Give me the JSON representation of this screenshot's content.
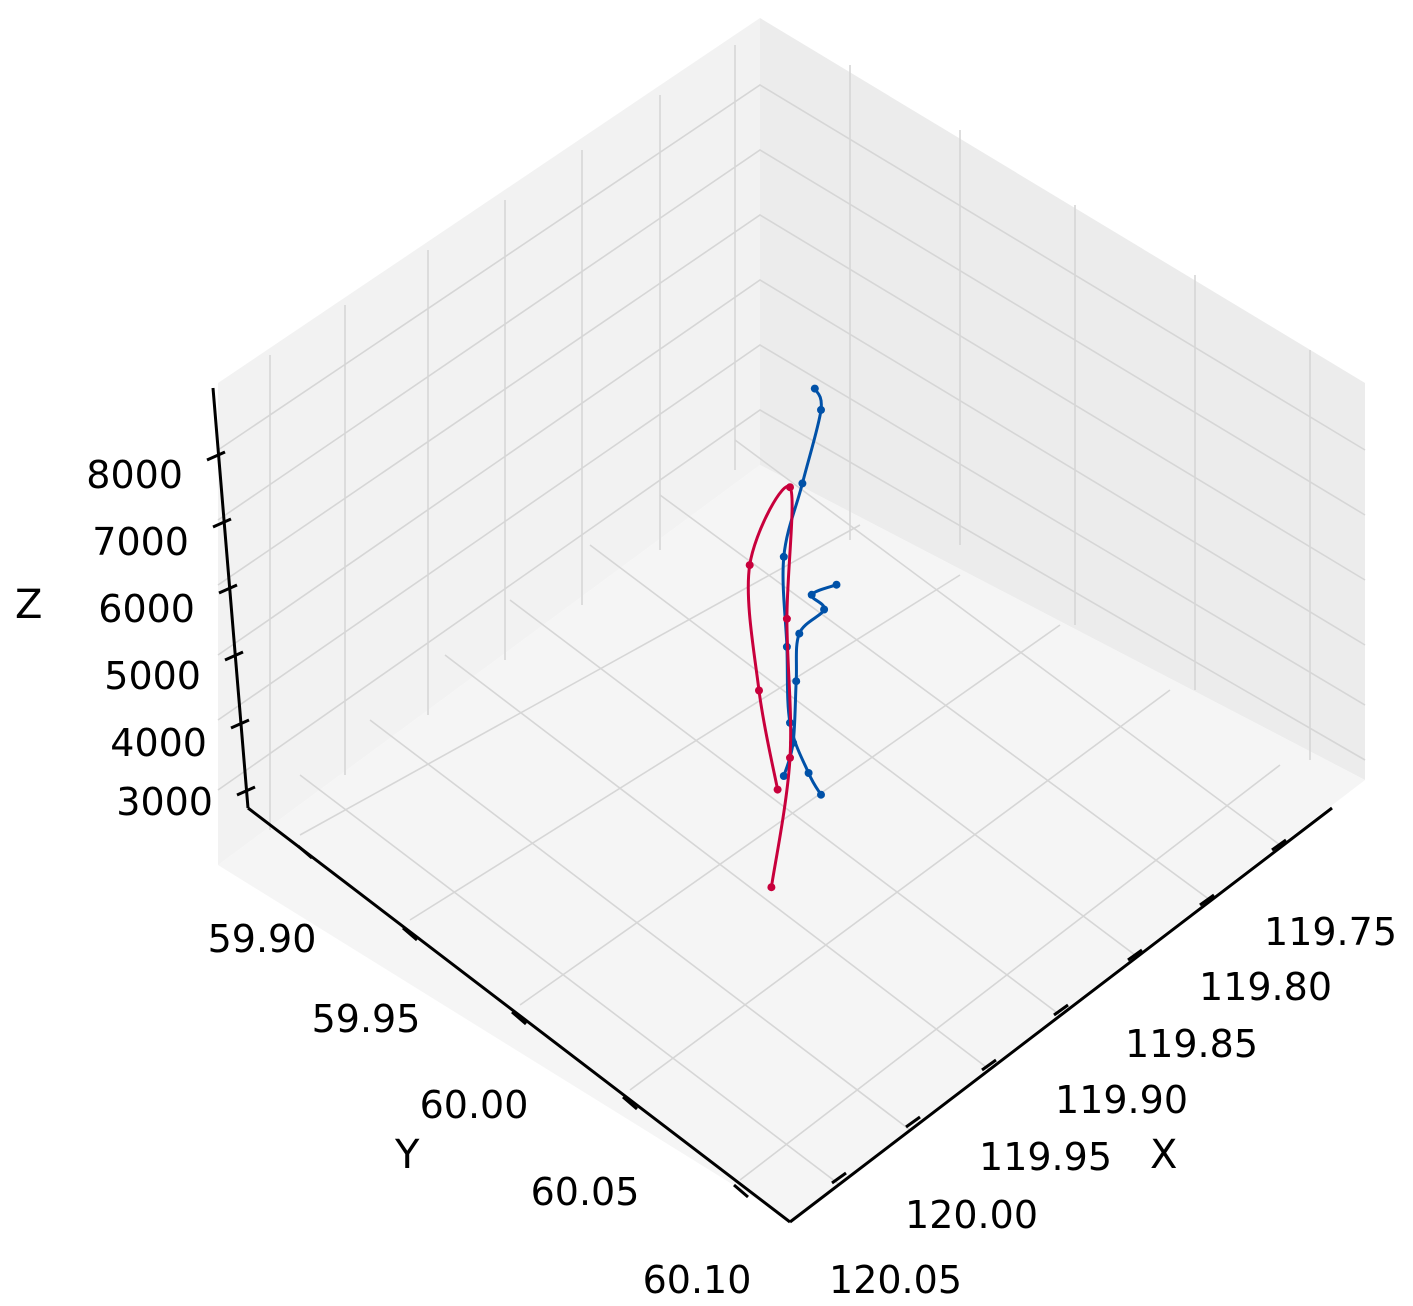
{
  "chart_data": {
    "type": "line",
    "projection": "3d",
    "title": "",
    "xlabel": "X",
    "ylabel": "Y",
    "zlabel": "Z",
    "x_ticks": [
      "119.75",
      "119.80",
      "119.85",
      "119.90",
      "119.95",
      "120.00",
      "120.05"
    ],
    "y_ticks": [
      "59.90",
      "59.95",
      "60.00",
      "60.05",
      "60.10"
    ],
    "z_ticks": [
      "3000",
      "4000",
      "5000",
      "6000",
      "7000",
      "8000"
    ],
    "xlim": [
      119.72,
      120.07
    ],
    "ylim": [
      59.87,
      60.12
    ],
    "zlim": [
      2800,
      8800
    ],
    "grid": true,
    "legend": "none",
    "series": [
      {
        "color": "#0051A8",
        "points": [
          {
            "x": 119.83,
            "y": 59.97,
            "z": 4300
          },
          {
            "x": 119.86,
            "y": 59.98,
            "z": 4900
          },
          {
            "x": 119.88,
            "y": 60.0,
            "z": 5500
          },
          {
            "x": 119.91,
            "y": 60.01,
            "z": 5900
          },
          {
            "x": 119.94,
            "y": 60.03,
            "z": 6200
          },
          {
            "x": 119.97,
            "y": 60.05,
            "z": 6300
          },
          {
            "x": 119.99,
            "y": 60.06,
            "z": 6400
          }
        ]
      },
      {
        "color": "#0051A8",
        "points": [
          {
            "x": 119.98,
            "y": 60.07,
            "z": 6200
          },
          {
            "x": 119.96,
            "y": 60.05,
            "z": 5700
          },
          {
            "x": 119.93,
            "y": 60.02,
            "z": 5200
          },
          {
            "x": 119.89,
            "y": 59.99,
            "z": 4900
          },
          {
            "x": 119.85,
            "y": 59.96,
            "z": 4800
          },
          {
            "x": 119.81,
            "y": 59.94,
            "z": 4700
          },
          {
            "x": 119.77,
            "y": 59.92,
            "z": 4600
          },
          {
            "x": 119.76,
            "y": 59.91,
            "z": 4500
          }
        ]
      },
      {
        "color": "#C8003C",
        "points": [
          {
            "x": 119.97,
            "y": 60.04,
            "z": 4000
          },
          {
            "x": 119.93,
            "y": 60.02,
            "z": 4700
          },
          {
            "x": 119.89,
            "y": 59.99,
            "z": 5300
          },
          {
            "x": 119.86,
            "y": 59.97,
            "z": 6200
          },
          {
            "x": 119.9,
            "y": 59.98,
            "z": 6000
          },
          {
            "x": 119.95,
            "y": 60.02,
            "z": 6000
          },
          {
            "x": 119.98,
            "y": 60.05,
            "z": 5800
          }
        ]
      }
    ]
  }
}
